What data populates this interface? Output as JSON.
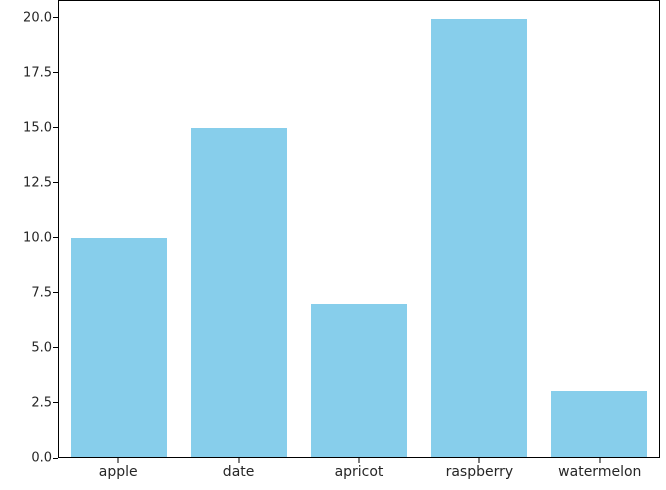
{
  "chart_data": {
    "type": "bar",
    "title": "",
    "xlabel": "",
    "ylabel": "",
    "categories": [
      "apple",
      "date",
      "apricot",
      "raspberry",
      "watermelon"
    ],
    "values": [
      10,
      15,
      7,
      20,
      3
    ],
    "ylim": [
      0,
      20.8
    ],
    "yticks": [
      0.0,
      2.5,
      5.0,
      7.5,
      10.0,
      12.5,
      15.0,
      17.5,
      20.0
    ],
    "ytick_labels": [
      "0.0",
      "2.5",
      "5.0",
      "7.5",
      "10.0",
      "12.5",
      "15.0",
      "17.5",
      "20.0"
    ],
    "bar_color": "#87CEEB",
    "bar_width_fraction": 0.8,
    "grid": false,
    "legend": false,
    "spine_color": "#000000"
  }
}
